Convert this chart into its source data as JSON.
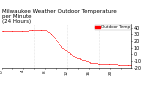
{
  "title": "Milwaukee Weather Outdoor Temperature\nper Minute\n(24 Hours)",
  "line_color": "#ff0000",
  "bg_color": "#ffffff",
  "y_values": [
    35,
    35,
    35,
    35,
    35,
    35,
    35,
    35,
    35,
    35,
    35,
    35,
    35,
    35,
    35,
    35,
    35,
    35,
    35,
    35,
    35,
    35,
    35,
    35,
    35,
    35,
    35,
    35,
    35,
    35,
    36,
    36,
    36,
    36,
    36,
    36,
    37,
    37,
    37,
    37,
    37,
    37,
    37,
    37,
    37,
    37,
    37,
    37,
    36,
    36,
    35,
    34,
    33,
    32,
    31,
    30,
    29,
    28,
    26,
    24,
    22,
    20,
    18,
    16,
    14,
    12,
    11,
    10,
    9,
    8,
    7,
    6,
    5,
    4,
    3,
    2,
    1,
    0,
    -1,
    -2,
    -3,
    -4,
    -4,
    -5,
    -5,
    -6,
    -6,
    -7,
    -7,
    -8,
    -8,
    -9,
    -9,
    -10,
    -10,
    -10,
    -11,
    -11,
    -12,
    -12,
    -12,
    -13,
    -13,
    -13,
    -13,
    -13,
    -14,
    -14,
    -14,
    -14,
    -14,
    -14,
    -14,
    -14,
    -14,
    -14,
    -14,
    -14,
    -14,
    -14,
    -14,
    -14,
    -14,
    -14,
    -14,
    -14,
    -14,
    -14,
    -15,
    -15,
    -15,
    -15,
    -15,
    -15,
    -15,
    -15,
    -15,
    -15,
    -15,
    -15,
    -15,
    -15,
    -15,
    -15
  ],
  "ylim": [
    -20,
    45
  ],
  "yticks": [
    40,
    30,
    20,
    10,
    0,
    -10,
    -20
  ],
  "ytick_labels": [
    "40",
    "30",
    "20",
    "10",
    "0",
    "-10",
    "-20"
  ],
  "num_points": 144,
  "title_fontsize": 4.0,
  "tick_fontsize": 3.5,
  "legend_color": "#ff0000",
  "legend_label": "Outdoor Temp",
  "vline_positions": [
    36,
    72,
    108
  ],
  "vline_color": "#bbbbbb",
  "dot_size": 1.0
}
